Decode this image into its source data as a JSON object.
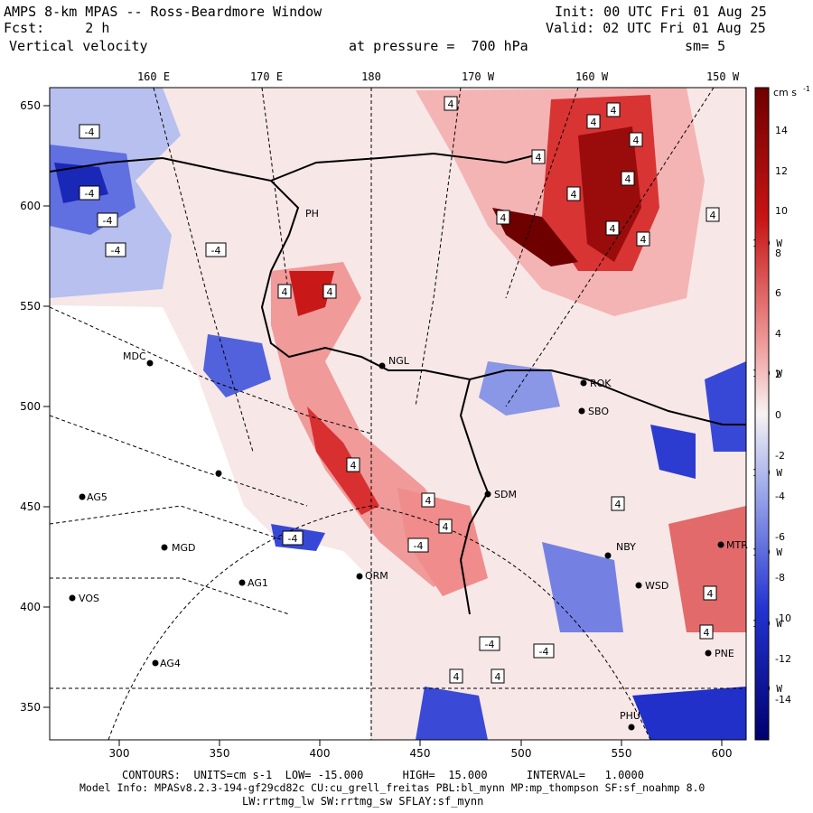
{
  "header": {
    "title": "AMPS 8-km MPAS -- Ross-Beardmore Window",
    "fcst": "Fcst:     2 h",
    "field": "Vertical velocity",
    "init": "Init: 00 UTC Fri 01 Aug 25",
    "valid": "Valid: 02 UTC Fri 01 Aug 25",
    "pressure": "at pressure =  700 hPa",
    "smooth": "sm= 5"
  },
  "axes": {
    "x_ticks": [
      "300",
      "350",
      "400",
      "450",
      "500",
      "550",
      "600"
    ],
    "y_ticks": [
      "650",
      "600",
      "550",
      "500",
      "450",
      "400",
      "350"
    ],
    "lon_labels": [
      "160 E",
      "170 E",
      "180",
      "170 W",
      "160 W",
      "150 W"
    ],
    "right_lon_labels": [
      "140 W",
      "130 W",
      "120 W",
      "110 W",
      "100 W",
      "90 W"
    ]
  },
  "colorbar": {
    "unit": "cm s",
    "unit_exp": "-1",
    "ticks": [
      "14",
      "12",
      "10",
      "8",
      "6",
      "4",
      "2",
      "0",
      "-2",
      "-4",
      "-6",
      "-8",
      "-10",
      "-12",
      "-14"
    ]
  },
  "stations": [
    {
      "id": "MDC"
    },
    {
      "id": "NGL"
    },
    {
      "id": "ROK"
    },
    {
      "id": "SBO"
    },
    {
      "id": "SDM"
    },
    {
      "id": "AG5"
    },
    {
      "id": "MGD"
    },
    {
      "id": "AG1"
    },
    {
      "id": "VOS"
    },
    {
      "id": "AG4"
    },
    {
      "id": "QRM"
    },
    {
      "id": "NBY"
    },
    {
      "id": "MTR"
    },
    {
      "id": "WSD"
    },
    {
      "id": "PNE"
    },
    {
      "id": "PHU"
    },
    {
      "id": "PH"
    }
  ],
  "contour_labels": [
    "4",
    "-4"
  ],
  "footer": {
    "line1": "CONTOURS:  UNITS=cm s-1  LOW= -15.000      HIGH=  15.000      INTERVAL=   1.0000",
    "line2": "Model Info: MPASv8.2.3-194-gf29cd82c CU:cu_grell_freitas PBL:bl_mynn MP:mp_thompson SF:sf_noahmp 8.0",
    "line3": "LW:rrtmg_lw SW:rrtmg_sw SFLAY:sf_mynn"
  },
  "colors": {
    "strong_red": "#7a0000",
    "red": "#d42020",
    "light_red": "#f6c6c6",
    "neutral": "#f5f0f0",
    "light_blue": "#c6cdef",
    "blue": "#3a4cd8",
    "strong_blue": "#00007a"
  }
}
